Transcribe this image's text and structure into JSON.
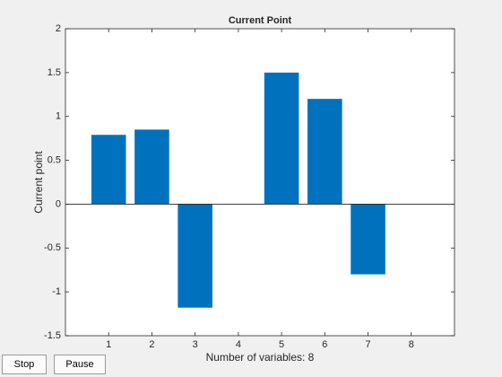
{
  "chart_data": {
    "type": "bar",
    "title": "Current Point",
    "xlabel": "Number of variables: 8",
    "ylabel": "Current point",
    "x": [
      1,
      2,
      3,
      4,
      5,
      6,
      7,
      8
    ],
    "values": [
      0.79,
      0.85,
      -1.18,
      0,
      1.5,
      1.2,
      -0.8,
      0
    ],
    "color": "#0072bd",
    "xlim": [
      0,
      9
    ],
    "xticks": [
      1,
      2,
      3,
      4,
      5,
      6,
      7,
      8
    ],
    "ylim": [
      -1.5,
      2
    ],
    "yticks": [
      -1.5,
      -1,
      -0.5,
      0,
      0.5,
      1,
      1.5,
      2
    ]
  },
  "buttons": [
    "Stop",
    "Pause"
  ]
}
